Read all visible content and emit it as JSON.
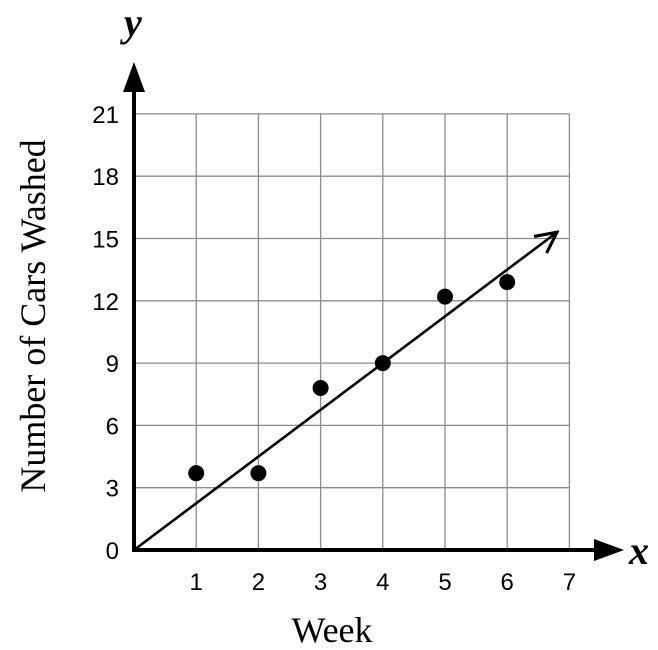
{
  "chart_data": {
    "type": "scatter",
    "xlabel": "Week",
    "ylabel": "Number of Cars Washed",
    "x_axis_variable": "x",
    "y_axis_variable": "y",
    "x_ticks": [
      "1",
      "2",
      "3",
      "4",
      "5",
      "6",
      "7"
    ],
    "y_ticks": [
      "0",
      "3",
      "6",
      "9",
      "12",
      "15",
      "18",
      "21"
    ],
    "xlim": [
      0,
      7
    ],
    "ylim": [
      0,
      21
    ],
    "grid": true,
    "points": [
      {
        "x": 1,
        "y": 3.7
      },
      {
        "x": 2,
        "y": 3.7
      },
      {
        "x": 3,
        "y": 7.8
      },
      {
        "x": 4,
        "y": 9
      },
      {
        "x": 5,
        "y": 12.2
      },
      {
        "x": 6,
        "y": 12.9
      }
    ],
    "trend_line": {
      "from": [
        0,
        0
      ],
      "to": [
        6.8,
        15.3
      ],
      "arrow": true
    }
  }
}
